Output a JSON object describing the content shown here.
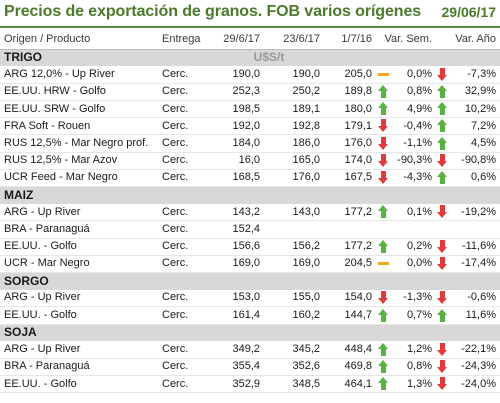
{
  "title": "Precios de exportación de granos. FOB varios orígenes",
  "date": "29/06/17",
  "headers": [
    "Origen / Producto",
    "Entrega",
    "29/6/17",
    "23/6/17",
    "1/7/16",
    "Var. Sem.",
    "Var. Año"
  ],
  "units": "U$S/t",
  "indicator_colors": {
    "up": "#59b044",
    "down": "#e03a3a",
    "flat": "#f0a81c"
  },
  "sections": [
    {
      "name": "TRIGO",
      "rows": [
        {
          "product": "ARG 12,0% - Up River",
          "delivery": "Cerc.",
          "p1": "190,0",
          "p2": "190,0",
          "p3": "205,0",
          "ind1": "flat",
          "var_sem": "0,0%",
          "ind2": "down",
          "var_ano": "-7,3%"
        },
        {
          "product": "EE.UU. HRW - Golfo",
          "delivery": "Cerc.",
          "p1": "252,3",
          "p2": "250,2",
          "p3": "189,8",
          "ind1": "up",
          "var_sem": "0,8%",
          "ind2": "up",
          "var_ano": "32,9%"
        },
        {
          "product": "EE.UU. SRW - Golfo",
          "delivery": "Cerc.",
          "p1": "198,5",
          "p2": "189,1",
          "p3": "180,0",
          "ind1": "up",
          "var_sem": "4,9%",
          "ind2": "up",
          "var_ano": "10,2%"
        },
        {
          "product": "FRA Soft - Rouen",
          "delivery": "Cerc.",
          "p1": "192,0",
          "p2": "192,8",
          "p3": "179,1",
          "ind1": "down",
          "var_sem": "-0,4%",
          "ind2": "up",
          "var_ano": "7,2%"
        },
        {
          "product": "RUS 12,5% - Mar Negro prof.",
          "delivery": "Cerc.",
          "p1": "184,0",
          "p2": "186,0",
          "p3": "176,0",
          "ind1": "down",
          "var_sem": "-1,1%",
          "ind2": "up",
          "var_ano": "4,5%"
        },
        {
          "product": "RUS 12,5% - Mar Azov",
          "delivery": "Cerc.",
          "p1": "16,0",
          "p2": "165,0",
          "p3": "174,0",
          "ind1": "down",
          "var_sem": "-90,3%",
          "ind2": "down",
          "var_ano": "-90,8%"
        },
        {
          "product": "UCR Feed - Mar Negro",
          "delivery": "Cerc.",
          "p1": "168,5",
          "p2": "176,0",
          "p3": "167,5",
          "ind1": "down",
          "var_sem": "-4,3%",
          "ind2": "up",
          "var_ano": "0,6%"
        }
      ]
    },
    {
      "name": "MAIZ",
      "rows": [
        {
          "product": "ARG - Up River",
          "delivery": "Cerc.",
          "p1": "143,2",
          "p2": "143,0",
          "p3": "177,2",
          "ind1": "up",
          "var_sem": "0,1%",
          "ind2": "down",
          "var_ano": "-19,2%"
        },
        {
          "product": "BRA - Paranaguá",
          "delivery": "Cerc.",
          "p1": "152,4",
          "p2": "",
          "p3": "",
          "ind1": "",
          "var_sem": "",
          "ind2": "",
          "var_ano": ""
        },
        {
          "product": "EE.UU. - Golfo",
          "delivery": "Cerc.",
          "p1": "156,6",
          "p2": "156,2",
          "p3": "177,2",
          "ind1": "up",
          "var_sem": "0,2%",
          "ind2": "down",
          "var_ano": "-11,6%"
        },
        {
          "product": "UCR - Mar Negro",
          "delivery": "Cerc.",
          "p1": "169,0",
          "p2": "169,0",
          "p3": "204,5",
          "ind1": "flat",
          "var_sem": "0,0%",
          "ind2": "down",
          "var_ano": "-17,4%"
        }
      ]
    },
    {
      "name": "SORGO",
      "rows": [
        {
          "product": "ARG - Up River",
          "delivery": "Cerc.",
          "p1": "153,0",
          "p2": "155,0",
          "p3": "154,0",
          "ind1": "down",
          "var_sem": "-1,3%",
          "ind2": "down",
          "var_ano": "-0,6%"
        },
        {
          "product": "EE.UU. - Golfo",
          "delivery": "Cerc.",
          "p1": "161,4",
          "p2": "160,2",
          "p3": "144,7",
          "ind1": "up",
          "var_sem": "0,7%",
          "ind2": "up",
          "var_ano": "11,6%"
        }
      ]
    },
    {
      "name": "SOJA",
      "rows": [
        {
          "product": "ARG - Up River",
          "delivery": "Cerc.",
          "p1": "349,2",
          "p2": "345,2",
          "p3": "448,4",
          "ind1": "up",
          "var_sem": "1,2%",
          "ind2": "down",
          "var_ano": "-22,1%"
        },
        {
          "product": "BRA - Paranaguá",
          "delivery": "Cerc.",
          "p1": "355,4",
          "p2": "352,6",
          "p3": "469,8",
          "ind1": "up",
          "var_sem": "0,8%",
          "ind2": "down",
          "var_ano": "-24,3%"
        },
        {
          "product": "EE.UU. - Golfo",
          "delivery": "Cerc.",
          "p1": "352,9",
          "p2": "348,5",
          "p3": "464,1",
          "ind1": "up",
          "var_sem": "1,3%",
          "ind2": "down",
          "var_ano": "-24,0%"
        }
      ]
    }
  ]
}
